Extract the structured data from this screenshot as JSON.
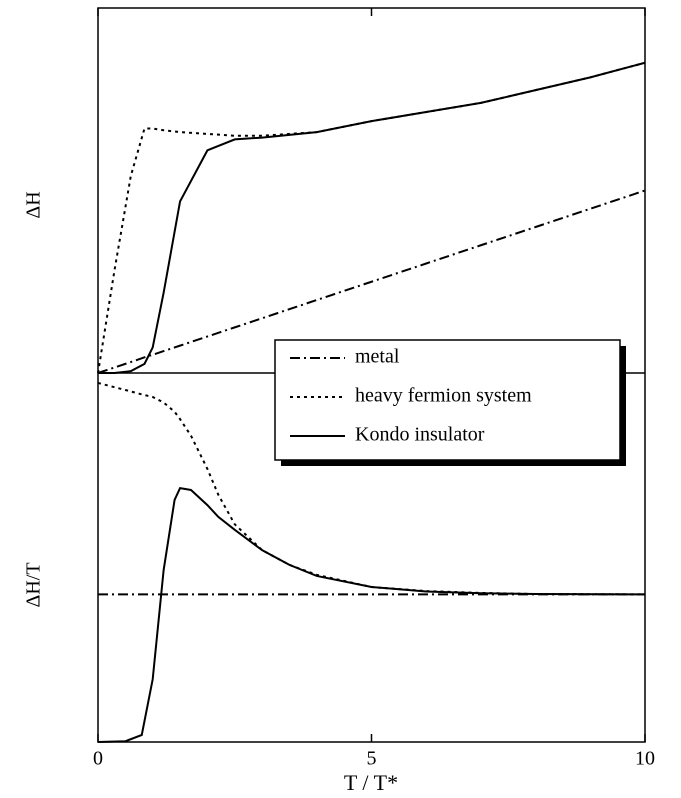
{
  "chart_data": [
    {
      "type": "line",
      "ylabel": "ΔH",
      "x": [
        0,
        0.3,
        0.6,
        0.85,
        1,
        1.2,
        1.5,
        2,
        2.5,
        3,
        4,
        5,
        6,
        7,
        8,
        9,
        10
      ],
      "xlim": [
        0,
        10
      ],
      "ylim": [
        0,
        10
      ],
      "series": [
        {
          "name": "metal",
          "color": "#000000",
          "style": "dashdot",
          "values": [
            0,
            0.15,
            0.3,
            0.43,
            0.5,
            0.6,
            0.75,
            1,
            1.25,
            1.5,
            2,
            2.5,
            3,
            3.5,
            4,
            4.5,
            5
          ]
        },
        {
          "name": "heavy fermion system",
          "color": "#000000",
          "style": "dotted",
          "values": [
            0,
            2.8,
            5.4,
            6.7,
            6.7,
            6.65,
            6.6,
            6.55,
            6.5,
            6.5,
            6.6,
            6.9,
            7.15,
            7.4,
            7.75,
            8.1,
            8.5
          ]
        },
        {
          "name": "Kondo insulator",
          "color": "#000000",
          "style": "solid",
          "values": [
            0,
            0,
            0.05,
            0.25,
            0.7,
            2.2,
            4.7,
            6.1,
            6.4,
            6.45,
            6.6,
            6.9,
            7.15,
            7.4,
            7.75,
            8.1,
            8.5
          ]
        }
      ]
    },
    {
      "type": "line",
      "ylabel": "ΔH/T",
      "xlabel": "T / T*",
      "x": [
        0,
        0.5,
        0.8,
        1,
        1.2,
        1.4,
        1.5,
        1.7,
        2,
        2.2,
        2.5,
        3,
        3.5,
        4,
        5,
        6,
        7,
        8,
        10
      ],
      "xlim": [
        0,
        10
      ],
      "xticks": [
        0,
        5,
        10
      ],
      "ylim": [
        0,
        10
      ],
      "series": [
        {
          "color": "#000000",
          "style": "dashdot",
          "values": [
            4,
            4,
            4,
            4,
            4,
            4,
            4,
            4,
            4,
            4,
            4,
            4,
            4,
            4,
            4,
            4,
            4,
            4,
            4
          ]
        },
        {
          "color": "#000000",
          "style": "dotted",
          "values": [
            9.73,
            9.54,
            9.42,
            9.35,
            9.2,
            8.95,
            8.75,
            8.3,
            7.4,
            6.7,
            5.9,
            5.2,
            4.8,
            4.53,
            4.2,
            4.09,
            4.04,
            4.01,
            4.0
          ]
        },
        {
          "color": "#000000",
          "style": "solid",
          "values": [
            0,
            0.02,
            0.19,
            1.7,
            4.66,
            6.56,
            6.88,
            6.83,
            6.42,
            6.1,
            5.75,
            5.2,
            4.8,
            4.5,
            4.2,
            4.08,
            4.03,
            4.01,
            4.0
          ]
        }
      ]
    }
  ]
}
